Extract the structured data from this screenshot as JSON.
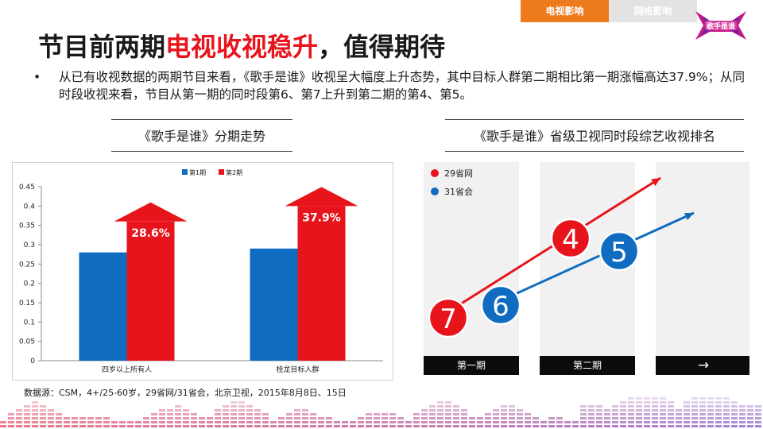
{
  "tabs": [
    {
      "label": "电视影响",
      "active": true
    },
    {
      "label": "网络影响",
      "active": false
    }
  ],
  "logo": {
    "icon": "show-logo-icon",
    "text": "歌手是谁"
  },
  "title": {
    "part1": "节目前两期",
    "highlight": "电视收视稳升",
    "part2": "，值得期待"
  },
  "bullet": {
    "dot": "•",
    "text": "从已有收视数据的两期节目来看，《歌手是谁》收视呈大幅度上升态势，其中目标人群第二期相比第一期涨幅高达37.9%；从同时段收视来看，节目从第一期的同时段第6、第7上升到第二期的第4、第5。"
  },
  "left_subtitle": "《歌手是谁》分期走势",
  "right_subtitle": "《歌手是谁》省级卫视同时段综艺收视排名",
  "chart_data": [
    {
      "type": "bar",
      "categories": [
        "四岁以上所有人",
        "桂龙目标人群"
      ],
      "series": [
        {
          "name": "第1期",
          "color": "#0f6cc0",
          "values": [
            0.28,
            0.29
          ]
        },
        {
          "name": "第2期",
          "color": "#e8141b",
          "values": [
            0.36,
            0.4
          ]
        }
      ],
      "ylim": [
        0,
        0.45
      ],
      "yticks": [
        "0",
        "0.05",
        "0.1",
        "0.15",
        "0.2",
        "0.25",
        "0.3",
        "0.35",
        "0.4",
        "0.45"
      ],
      "annotations": [
        "28.6%",
        "37.9%"
      ],
      "legend": "top-center",
      "grid": false
    },
    {
      "type": "line",
      "categories": [
        "第一期",
        "第二期"
      ],
      "third_label": "→",
      "series": [
        {
          "name": "29省网",
          "color": "#e8141b",
          "values": [
            7,
            4
          ]
        },
        {
          "name": "31省会",
          "color": "#0f6cc0",
          "values": [
            6,
            5
          ]
        }
      ],
      "legend": "top-left"
    }
  ],
  "source": "数据源：CSM，4+/25-60岁，29省网/31省会，北京卫视，2015年8月8日、15日"
}
